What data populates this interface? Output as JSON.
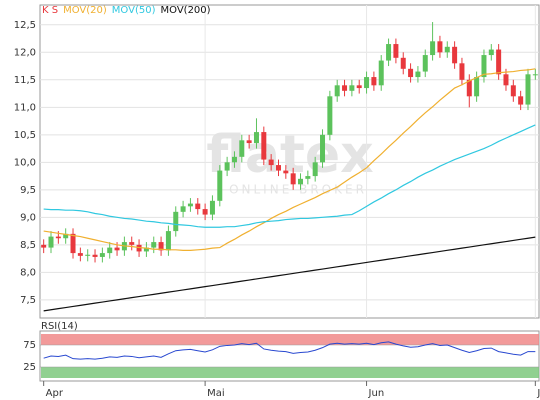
{
  "chart_data": [
    {
      "type": "candlestick",
      "watermark": "flatex",
      "watermark_sub": "ONLINE BROKER",
      "categories": [
        "Apr",
        null,
        null,
        null,
        null,
        null,
        null,
        null,
        null,
        null,
        null,
        null,
        null,
        null,
        null,
        null,
        null,
        null,
        null,
        null,
        null,
        null,
        "Mai",
        null,
        null,
        null,
        null,
        null,
        null,
        null,
        null,
        null,
        null,
        null,
        null,
        null,
        null,
        null,
        null,
        null,
        null,
        null,
        null,
        null,
        "Jun",
        null,
        null,
        null,
        null,
        null,
        null,
        null,
        null,
        null,
        null,
        null,
        null,
        null,
        null,
        null,
        null,
        null,
        null,
        null,
        null,
        null,
        null,
        "J"
      ],
      "ylim": [
        7.17,
        12.86
      ],
      "yticks": [
        {
          "value": 7.5,
          "label": "7,5"
        },
        {
          "value": 8,
          "label": "8,0"
        },
        {
          "value": 8.5,
          "label": "8,5"
        },
        {
          "value": 9,
          "label": "9,0"
        },
        {
          "value": 9.5,
          "label": "9,5"
        },
        {
          "value": 10,
          "label": "10,0"
        },
        {
          "value": 10.5,
          "label": "10,5"
        },
        {
          "value": 11,
          "label": "11,0"
        },
        {
          "value": 11.5,
          "label": "11,5"
        },
        {
          "value": 12,
          "label": "12,0"
        },
        {
          "value": 12.5,
          "label": "12,5"
        }
      ],
      "grid": true,
      "series": [
        {
          "name": "K S",
          "color": "#e8383d",
          "up_color": "#5cc25c",
          "open": [
            8.5,
            8.45,
            8.65,
            8.62,
            8.7,
            8.35,
            8.3,
            8.32,
            8.28,
            8.35,
            8.45,
            8.4,
            8.55,
            8.5,
            8.38,
            8.45,
            8.55,
            8.4,
            8.75,
            9.1,
            9.2,
            9.25,
            9.15,
            9.05,
            9.3,
            9.85,
            10.0,
            10.1,
            10.4,
            10.35,
            10.55,
            10.05,
            9.95,
            9.85,
            9.8,
            9.6,
            9.7,
            9.75,
            10.0,
            10.5,
            11.2,
            11.4,
            11.3,
            11.4,
            11.35,
            11.55,
            11.4,
            11.85,
            12.15,
            11.9,
            11.7,
            11.55,
            11.65,
            11.95,
            12.2,
            12.0,
            12.1,
            11.8,
            11.5,
            11.2,
            11.55,
            11.95,
            12.05,
            11.6,
            11.4,
            11.2,
            11.05,
            11.6
          ],
          "high": [
            8.6,
            8.75,
            8.75,
            8.8,
            8.8,
            8.45,
            8.42,
            8.42,
            8.45,
            8.55,
            8.55,
            8.65,
            8.65,
            8.6,
            8.55,
            8.65,
            8.65,
            8.85,
            9.2,
            9.3,
            9.35,
            9.35,
            9.25,
            9.4,
            9.95,
            10.1,
            10.2,
            10.5,
            10.5,
            10.8,
            10.65,
            10.15,
            10.05,
            9.95,
            9.9,
            9.8,
            9.85,
            10.1,
            10.6,
            11.3,
            11.5,
            11.5,
            11.5,
            11.5,
            11.65,
            11.65,
            11.95,
            12.25,
            12.25,
            12.0,
            11.8,
            11.75,
            12.05,
            12.55,
            12.3,
            12.2,
            12.2,
            11.9,
            11.6,
            11.65,
            12.05,
            12.15,
            12.15,
            11.7,
            11.5,
            11.3,
            11.7,
            11.7
          ],
          "low": [
            8.35,
            8.35,
            8.52,
            8.52,
            8.25,
            8.2,
            8.2,
            8.18,
            8.18,
            8.25,
            8.3,
            8.3,
            8.4,
            8.28,
            8.28,
            8.35,
            8.3,
            8.3,
            8.65,
            9.0,
            9.1,
            9.05,
            8.95,
            8.95,
            9.2,
            9.75,
            9.9,
            10.0,
            10.25,
            10.25,
            9.95,
            9.85,
            9.75,
            9.7,
            9.5,
            9.5,
            9.6,
            9.65,
            9.9,
            10.4,
            11.1,
            11.2,
            11.2,
            11.25,
            11.25,
            11.3,
            11.3,
            11.75,
            11.8,
            11.6,
            11.45,
            11.45,
            11.55,
            11.85,
            11.9,
            11.9,
            11.7,
            11.4,
            11.0,
            11.1,
            11.45,
            11.85,
            11.5,
            11.3,
            11.1,
            10.95,
            10.95,
            11.5
          ],
          "close": [
            8.45,
            8.65,
            8.62,
            8.7,
            8.35,
            8.3,
            8.32,
            8.28,
            8.35,
            8.45,
            8.4,
            8.55,
            8.5,
            8.38,
            8.45,
            8.55,
            8.4,
            8.75,
            9.1,
            9.2,
            9.25,
            9.15,
            9.05,
            9.3,
            9.85,
            10.0,
            10.1,
            10.4,
            10.35,
            10.55,
            10.05,
            9.95,
            9.85,
            9.8,
            9.6,
            9.7,
            9.75,
            10.0,
            10.5,
            11.2,
            11.4,
            11.3,
            11.4,
            11.35,
            11.55,
            11.4,
            11.85,
            12.15,
            11.9,
            11.7,
            11.55,
            11.65,
            11.95,
            12.2,
            12.0,
            12.1,
            11.8,
            11.5,
            11.2,
            11.55,
            11.95,
            12.05,
            11.6,
            11.4,
            11.2,
            11.05,
            11.6,
            11.6
          ]
        },
        {
          "name": "MOV(20)",
          "color": "#f0b030",
          "values": [
            8.75,
            8.73,
            8.71,
            8.69,
            8.67,
            8.65,
            8.62,
            8.59,
            8.56,
            8.53,
            8.5,
            8.48,
            8.47,
            8.45,
            8.44,
            8.42,
            8.42,
            8.41,
            8.41,
            8.4,
            8.4,
            8.41,
            8.42,
            8.44,
            8.45,
            8.53,
            8.6,
            8.68,
            8.75,
            8.83,
            8.9,
            8.98,
            9.05,
            9.11,
            9.18,
            9.24,
            9.3,
            9.36,
            9.43,
            9.49,
            9.55,
            9.64,
            9.73,
            9.81,
            9.9,
            10.03,
            10.15,
            10.28,
            10.4,
            10.53,
            10.65,
            10.78,
            10.9,
            11.01,
            11.13,
            11.24,
            11.35,
            11.41,
            11.48,
            11.54,
            11.6,
            11.61,
            11.63,
            11.64,
            11.65,
            11.67,
            11.68,
            11.7
          ]
        },
        {
          "name": "MOV(50)",
          "color": "#30c8e0",
          "values": [
            9.15,
            9.14,
            9.14,
            9.13,
            9.13,
            9.12,
            9.1,
            9.07,
            9.05,
            9.02,
            9.0,
            8.98,
            8.97,
            8.95,
            8.93,
            8.92,
            8.9,
            8.89,
            8.87,
            8.86,
            8.85,
            8.83,
            8.82,
            8.82,
            8.82,
            8.83,
            8.83,
            8.85,
            8.87,
            8.9,
            8.92,
            8.93,
            8.94,
            8.96,
            8.97,
            8.98,
            8.98,
            8.99,
            9.0,
            9.01,
            9.02,
            9.04,
            9.05,
            9.12,
            9.2,
            9.28,
            9.35,
            9.43,
            9.5,
            9.58,
            9.65,
            9.73,
            9.8,
            9.86,
            9.93,
            9.99,
            10.05,
            10.1,
            10.15,
            10.2,
            10.25,
            10.31,
            10.38,
            10.44,
            10.5,
            10.56,
            10.62,
            10.68
          ]
        },
        {
          "name": "MOV(200)",
          "color": "#111111",
          "values": [
            7.3,
            7.32,
            7.34,
            7.36,
            7.38,
            7.4,
            7.42,
            7.44,
            7.46,
            7.48,
            7.5,
            7.52,
            7.54,
            7.56,
            7.58,
            7.6,
            7.62,
            7.64,
            7.66,
            7.68,
            7.7,
            7.72,
            7.74,
            7.76,
            7.78,
            7.8,
            7.82,
            7.84,
            7.86,
            7.88,
            7.9,
            7.92,
            7.94,
            7.96,
            7.98,
            8.0,
            8.02,
            8.04,
            8.06,
            8.08,
            8.1,
            8.12,
            8.14,
            8.16,
            8.18,
            8.2,
            8.22,
            8.24,
            8.26,
            8.28,
            8.3,
            8.32,
            8.34,
            8.36,
            8.38,
            8.4,
            8.42,
            8.44,
            8.46,
            8.48,
            8.5,
            8.52,
            8.54,
            8.56,
            8.58,
            8.6,
            8.62,
            8.64
          ]
        }
      ]
    },
    {
      "type": "line",
      "title": "RSI(14)",
      "ylim": [
        0,
        100
      ],
      "yticks": [
        25,
        75
      ],
      "bands": [
        {
          "from": 75,
          "to": 100,
          "color": "#f08888"
        },
        {
          "from": 0,
          "to": 25,
          "color": "#7cc87c"
        }
      ],
      "series": [
        {
          "color": "#2848d0",
          "values": [
            45,
            50,
            49,
            52,
            44,
            43,
            44,
            43,
            45,
            48,
            47,
            50,
            49,
            46,
            48,
            50,
            47,
            55,
            62,
            64,
            65,
            62,
            59,
            64,
            72,
            74,
            75,
            78,
            76,
            79,
            66,
            63,
            61,
            60,
            56,
            58,
            59,
            63,
            69,
            77,
            79,
            77,
            78,
            77,
            79,
            76,
            80,
            82,
            77,
            73,
            70,
            71,
            75,
            78,
            74,
            75,
            69,
            63,
            58,
            62,
            67,
            68,
            60,
            57,
            54,
            52,
            60,
            60
          ]
        }
      ]
    }
  ]
}
